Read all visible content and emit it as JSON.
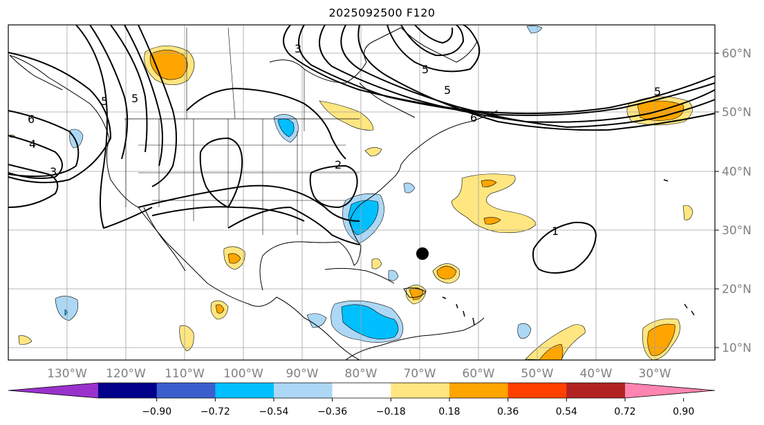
{
  "title": "2025092500 F120",
  "map": {
    "lon_ticks": [
      "130°W",
      "120°W",
      "110°W",
      "100°W",
      "90°W",
      "80°W",
      "70°W",
      "60°W",
      "50°W",
      "40°W",
      "30°W"
    ],
    "lat_ticks": [
      "60°N",
      "50°N",
      "40°N",
      "30°N",
      "20°N",
      "10°N"
    ],
    "contour_labels": [
      "6",
      "4",
      "3",
      "5",
      "5",
      "2",
      "3",
      "5",
      "5",
      "6",
      "1",
      "5"
    ],
    "marker": "black-dot"
  },
  "colorbar": {
    "ticks": [
      "−0.90",
      "−0.72",
      "−0.54",
      "−0.36",
      "−0.18",
      "0.18",
      "0.36",
      "0.54",
      "0.72",
      "0.90"
    ],
    "colors": [
      "#9932cc",
      "#00008b",
      "#3a5fcd",
      "#00bfff",
      "#add8f5",
      "#ffffff",
      "#ffe680",
      "#ffa500",
      "#ff4000",
      "#b22222",
      "#ff85b0"
    ],
    "extend": "both"
  }
}
